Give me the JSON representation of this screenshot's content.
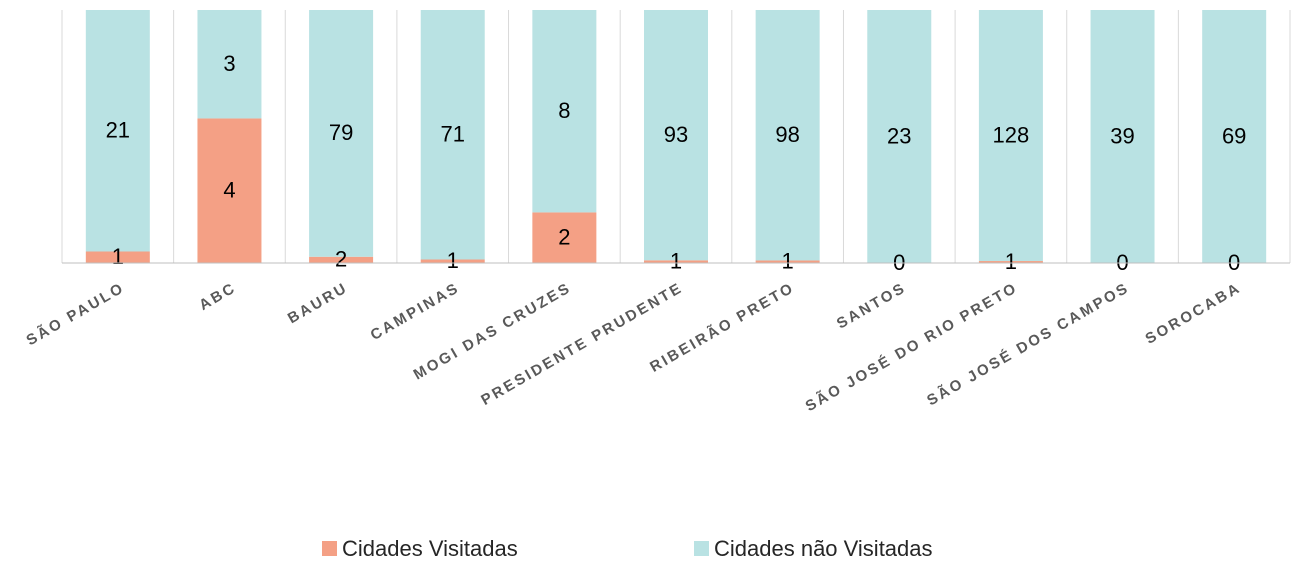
{
  "chart_data": {
    "type": "bar",
    "stacked": "percent",
    "categories": [
      "SÃO PAULO",
      "ABC",
      "BAURU",
      "CAMPINAS",
      "MOGI DAS CRUZES",
      "PRESIDENTE PRUDENTE",
      "RIBEIRÃO PRETO",
      "SANTOS",
      "SÃO JOSÉ DO RIO PRETO",
      "SÃO JOSÉ DOS CAMPOS",
      "SOROCABA"
    ],
    "series": [
      {
        "name": "Cidades Visitadas",
        "color": "#f4a085",
        "values": [
          1,
          4,
          2,
          1,
          2,
          1,
          1,
          0,
          1,
          0,
          0
        ]
      },
      {
        "name": "Cidades não Visitadas",
        "color": "#b9e2e3",
        "values": [
          21,
          3,
          79,
          71,
          8,
          93,
          98,
          23,
          128,
          39,
          69
        ]
      }
    ],
    "legend": "bottom"
  }
}
